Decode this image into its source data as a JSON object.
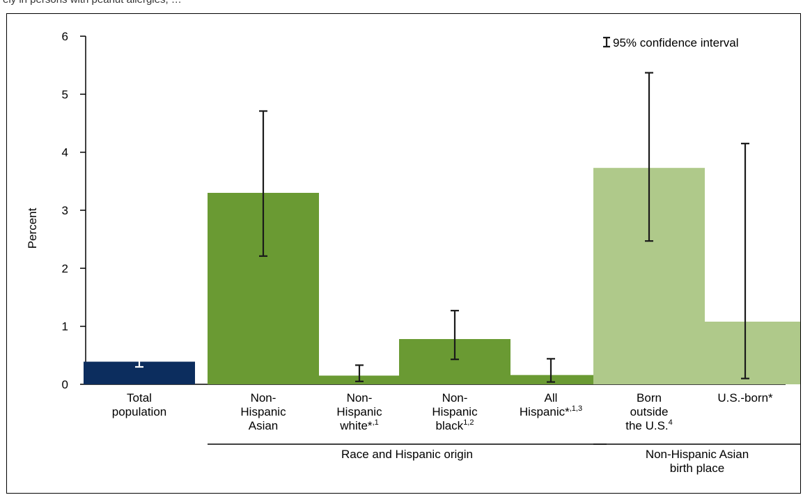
{
  "caption_fragment": "ely in persons with peanut allergies, …",
  "legend": {
    "label": "95% confidence interval",
    "icon": "error-bar-icon"
  },
  "chart_data": {
    "type": "bar",
    "ylabel": "Percent",
    "ylim": [
      0,
      6
    ],
    "yticks": [
      0,
      1,
      2,
      3,
      4,
      5,
      6
    ],
    "grid": false,
    "legend_position": "top-right",
    "bars": [
      {
        "label_lines": [
          "Total",
          "population"
        ],
        "value": 0.39,
        "ci": [
          0.3,
          0.49
        ],
        "color": "#0c2d5e",
        "ci_color": "#ffffff"
      },
      {
        "label_lines": [
          "Non-",
          "Hispanic",
          "Asian"
        ],
        "value": 3.3,
        "ci": [
          2.21,
          4.71
        ],
        "color": "#6a9a33",
        "ci_color": "#1a1a1a"
      },
      {
        "label_lines": [
          "Non-",
          "Hispanic",
          "white*,1"
        ],
        "value": 0.15,
        "ci": [
          0.05,
          0.33
        ],
        "color": "#6a9a33",
        "ci_color": "#1a1a1a"
      },
      {
        "label_lines": [
          "Non-",
          "Hispanic",
          "black1,2"
        ],
        "value": 0.78,
        "ci": [
          0.43,
          1.27
        ],
        "color": "#6a9a33",
        "ci_color": "#1a1a1a"
      },
      {
        "label_lines": [
          "All",
          "Hispanic*,1,3"
        ],
        "value": 0.16,
        "ci": [
          0.04,
          0.44
        ],
        "color": "#6a9a33",
        "ci_color": "#1a1a1a"
      },
      {
        "label_lines": [
          "Born",
          "outside",
          "the U.S.4"
        ],
        "value": 3.73,
        "ci": [
          2.47,
          5.37
        ],
        "color": "#afc98a",
        "ci_color": "#1a1a1a"
      },
      {
        "label_lines": [
          "U.S.-born*"
        ],
        "value": 1.08,
        "ci": [
          0.1,
          4.15
        ],
        "color": "#afc98a",
        "ci_color": "#1a1a1a"
      }
    ],
    "groups": [
      {
        "label_lines": [
          "Race and Hispanic origin"
        ],
        "first_bar": 1,
        "last_bar": 4
      },
      {
        "label_lines": [
          "Non-Hispanic Asian",
          "birth place"
        ],
        "first_bar": 5,
        "last_bar": 6
      }
    ]
  }
}
